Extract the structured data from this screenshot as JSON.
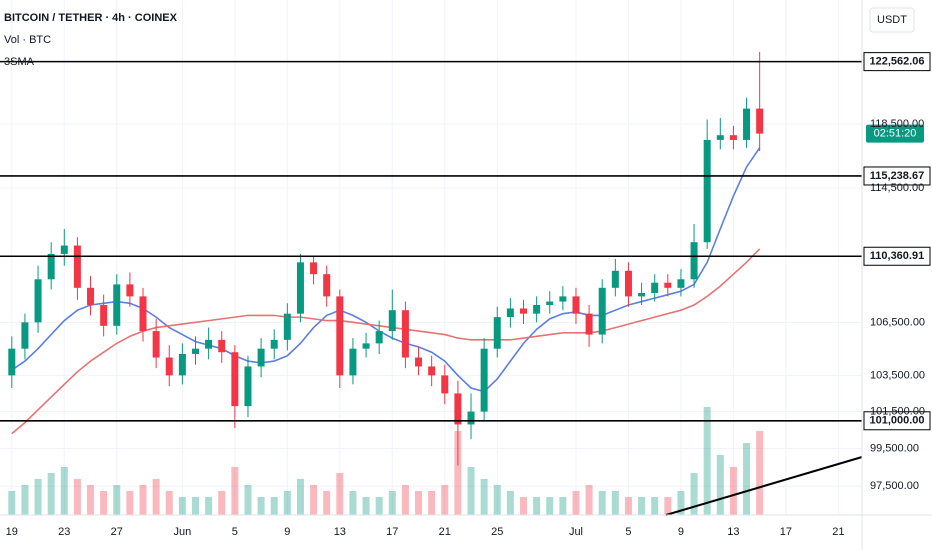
{
  "chart_data": {
    "type": "candlestick",
    "title": "BITCOIN / TETHER · 4h · COINEX",
    "volume_label": "Vol · BTC",
    "indicator": "3SMA",
    "currency": "USDT",
    "countdown": "02:51:20",
    "log_scale": true,
    "grid": true,
    "up_color": "#089981",
    "down_color": "#f23645",
    "x": [
      0,
      1,
      2,
      3,
      4,
      5,
      6,
      7,
      8,
      9,
      10,
      11,
      12,
      13,
      14,
      15,
      16,
      17,
      18,
      19,
      20,
      21,
      22,
      23,
      24,
      25,
      26,
      27,
      28,
      29,
      30,
      31,
      32,
      33,
      34,
      35,
      36,
      37,
      38,
      39,
      40,
      41,
      42,
      43,
      44,
      45,
      46,
      47,
      48,
      49,
      50,
      51,
      52,
      53,
      54,
      55,
      56,
      57
    ],
    "open": [
      103500,
      105000,
      106500,
      109000,
      110500,
      111000,
      108500,
      107500,
      106300,
      108700,
      108000,
      106000,
      104500,
      103500,
      104700,
      105000,
      105500,
      104800,
      101800,
      104000,
      105000,
      105500,
      107000,
      110000,
      109300,
      108000,
      103500,
      105000,
      105300,
      106000,
      107200,
      104500,
      104000,
      103500,
      102500,
      100800,
      101500,
      105000,
      106800,
      107300,
      107000,
      107500,
      107700,
      108000,
      107000,
      105800,
      108500,
      109500,
      108000,
      108200,
      108800,
      108500,
      109000,
      111200,
      117500,
      117800,
      117500,
      119500
    ],
    "high": [
      105700,
      107000,
      109800,
      111200,
      112000,
      111500,
      109200,
      108100,
      109300,
      109400,
      108500,
      106700,
      105200,
      105300,
      105700,
      106200,
      106000,
      105200,
      104600,
      105600,
      106100,
      107600,
      110500,
      110400,
      109800,
      108400,
      105600,
      105900,
      106600,
      108400,
      107700,
      105100,
      104600,
      104100,
      103200,
      102500,
      105600,
      107400,
      107900,
      107800,
      108000,
      108300,
      108600,
      108500,
      107500,
      109000,
      110200,
      110000,
      108800,
      109300,
      109300,
      109600,
      112300,
      118800,
      118900,
      118400,
      120200,
      123200
    ],
    "low": [
      102800,
      104400,
      105900,
      108400,
      109800,
      107800,
      106900,
      105700,
      105800,
      107400,
      105400,
      103900,
      102900,
      103000,
      104100,
      104400,
      104200,
      100600,
      101200,
      103400,
      104400,
      104900,
      106500,
      108700,
      107400,
      102800,
      103000,
      104500,
      104700,
      105500,
      103900,
      103500,
      102900,
      101900,
      98600,
      100000,
      101000,
      104500,
      106200,
      106400,
      106500,
      107000,
      107200,
      106400,
      105100,
      105300,
      108000,
      107400,
      107500,
      107700,
      108000,
      108000,
      108500,
      110800,
      116900,
      116900,
      117000,
      116800
    ],
    "close": [
      105000,
      106500,
      109000,
      110500,
      111000,
      108500,
      107500,
      106300,
      108700,
      108000,
      106000,
      104500,
      103500,
      104700,
      105000,
      105500,
      104800,
      101800,
      104000,
      105000,
      105500,
      107000,
      110000,
      109300,
      108000,
      103500,
      105000,
      105300,
      106000,
      107200,
      104500,
      104000,
      103500,
      102500,
      100800,
      101500,
      105000,
      106800,
      107300,
      107000,
      107500,
      107700,
      108000,
      107000,
      105800,
      108500,
      109500,
      108000,
      108200,
      108800,
      108500,
      109000,
      111200,
      117500,
      117800,
      117500,
      119500,
      117900
    ],
    "volume": [
      20,
      25,
      30,
      35,
      40,
      30,
      25,
      20,
      25,
      20,
      25,
      30,
      20,
      15,
      15,
      15,
      20,
      40,
      25,
      15,
      15,
      20,
      30,
      25,
      20,
      35,
      20,
      15,
      15,
      20,
      25,
      20,
      20,
      25,
      70,
      40,
      30,
      25,
      20,
      15,
      15,
      15,
      15,
      20,
      25,
      20,
      20,
      15,
      15,
      15,
      15,
      20,
      35,
      90,
      50,
      40,
      60,
      70
    ],
    "vlim": [
      0,
      100
    ],
    "moving_averages": [
      {
        "color": "#5b7fe0",
        "values": [
          103800,
          104300,
          105000,
          105800,
          106600,
          107200,
          107500,
          107600,
          107700,
          107600,
          107300,
          106800,
          106200,
          105800,
          105400,
          105200,
          105000,
          104600,
          104300,
          104200,
          104300,
          104600,
          105300,
          106200,
          106900,
          107200,
          106900,
          106500,
          106000,
          105600,
          105300,
          105100,
          104800,
          104300,
          103500,
          102800,
          102600,
          103300,
          104300,
          105300,
          106100,
          106700,
          107000,
          107100,
          106900,
          106900,
          107200,
          107500,
          107700,
          107900,
          108100,
          108300,
          108700,
          110000,
          112000,
          114000,
          115800,
          117000
        ]
      },
      {
        "color": "#e57373",
        "values": [
          100300,
          100900,
          101600,
          102300,
          103000,
          103700,
          104300,
          104800,
          105300,
          105700,
          106000,
          106200,
          106300,
          106400,
          106500,
          106600,
          106700,
          106800,
          106900,
          106900,
          106900,
          106800,
          106800,
          106700,
          106600,
          106600,
          106500,
          106400,
          106300,
          106200,
          106100,
          106000,
          105900,
          105800,
          105600,
          105500,
          105500,
          105500,
          105500,
          105600,
          105700,
          105800,
          105900,
          105900,
          105900,
          106000,
          106200,
          106400,
          106600,
          106800,
          107000,
          107200,
          107500,
          108000,
          108600,
          109300,
          110000,
          110800
        ]
      }
    ],
    "levels": [
      {
        "value": 122562.06,
        "label": "122,562.06"
      },
      {
        "value": 115238.67,
        "label": "115,238.67"
      },
      {
        "value": 110360.91,
        "label": "110,360.91"
      },
      {
        "value": 101000,
        "label": "101,000.00"
      }
    ],
    "xlim": [
      -0.9,
      64.8
    ],
    "xticks": [
      {
        "value": 0,
        "label": "19"
      },
      {
        "value": 4,
        "label": "23"
      },
      {
        "value": 8,
        "label": "27"
      },
      {
        "value": 13,
        "label": "Jun"
      },
      {
        "value": 17,
        "label": "5"
      },
      {
        "value": 21,
        "label": "9"
      },
      {
        "value": 25,
        "label": "13"
      },
      {
        "value": 29,
        "label": "17"
      },
      {
        "value": 33,
        "label": "21"
      },
      {
        "value": 37,
        "label": "25"
      },
      {
        "value": 43,
        "label": "Jul"
      },
      {
        "value": 47,
        "label": "5"
      },
      {
        "value": 51,
        "label": "9"
      },
      {
        "value": 55,
        "label": "13"
      },
      {
        "value": 59,
        "label": "17"
      },
      {
        "value": 63,
        "label": "21"
      }
    ],
    "ylim": [
      96000,
      126700
    ],
    "yticks": [
      {
        "value": 118500,
        "label": "118,500.00"
      },
      {
        "value": 114500,
        "label": "114,500.00"
      },
      {
        "value": 106500,
        "label": "106,500.00"
      },
      {
        "value": 103500,
        "label": "103,500.00"
      },
      {
        "value": 101500,
        "label": "101,500.00"
      },
      {
        "value": 99500,
        "label": "99,500.00"
      },
      {
        "value": 97500,
        "label": "97,500.00"
      }
    ]
  }
}
